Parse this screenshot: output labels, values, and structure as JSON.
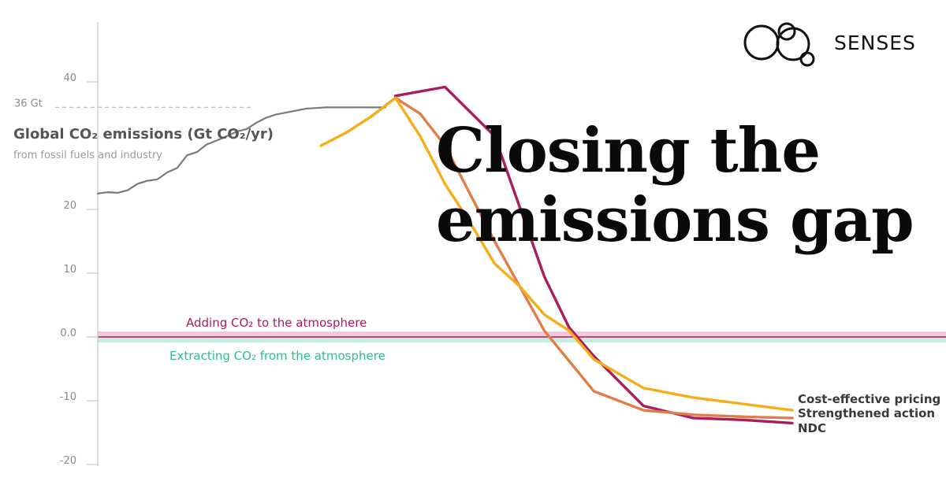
{
  "brand": {
    "name": "SENSES",
    "logo_icon": "senses-circles-logo-icon"
  },
  "headline": {
    "line1": "Closing the",
    "line2": "emissions gap"
  },
  "chart_data": {
    "type": "line",
    "ylabel": "Global CO₂ emissions (Gt CO₂/yr)",
    "subtitle": "from fossil fuels and industry",
    "ylim": [
      -20,
      50
    ],
    "xlim": [
      1960,
      2100
    ],
    "yticks": [
      {
        "value": 40,
        "label": "40"
      },
      {
        "value": 20,
        "label": "20"
      },
      {
        "value": 10,
        "label": "10"
      },
      {
        "value": 0,
        "label": "0.0"
      },
      {
        "value": -10,
        "label": "-10"
      },
      {
        "value": -20,
        "label": "-20"
      }
    ],
    "reference": {
      "value": 36,
      "label": "36 Gt"
    },
    "bands": [
      {
        "label": "Adding CO₂ to the atmosphere",
        "color": "#b0185e",
        "fill": "#f3c6d8"
      },
      {
        "label": "Extracting CO₂ from the atmosphere",
        "color": "#2bbf8e",
        "fill": "#c4eedd"
      }
    ],
    "series": [
      {
        "name": "",
        "color": "#7a7a7a",
        "x": [
          1960,
          1962,
          1964,
          1966,
          1968,
          1970,
          1972,
          1974,
          1976,
          1978,
          1980,
          1982,
          1984,
          1986,
          1988,
          1990,
          1992,
          1994,
          1996,
          1998,
          2000,
          2002,
          2004,
          2006,
          2008,
          2010,
          2012,
          2014,
          2016,
          2018
        ],
        "y": [
          22.5,
          22.7,
          22.6,
          23.0,
          24.0,
          24.5,
          24.7,
          25.8,
          26.5,
          28.5,
          29.0,
          30.2,
          30.8,
          31.5,
          32.2,
          32.6,
          33.6,
          34.4,
          34.9,
          35.2,
          35.5,
          35.8,
          35.9,
          36.0,
          36.0,
          36.0,
          36.0,
          36.0,
          36.0,
          36.0
        ]
      },
      {
        "name": "NDC",
        "color": "#a91d5f",
        "x": [
          2020,
          2030,
          2040,
          2050,
          2055,
          2060,
          2070,
          2080,
          2090,
          2100
        ],
        "y": [
          37.8,
          39.2,
          31.5,
          9.5,
          1.5,
          -3.0,
          -10.8,
          -12.7,
          -13.0,
          -13.5
        ]
      },
      {
        "name": "Strengthened action",
        "color": "#e07d4a",
        "x": [
          2015,
          2020,
          2025,
          2030,
          2040,
          2050,
          2060,
          2070,
          2080,
          2090,
          2100
        ],
        "y": [
          34.5,
          37.5,
          35.0,
          30.0,
          15.0,
          1.0,
          -8.5,
          -11.5,
          -12.2,
          -12.5,
          -12.7
        ]
      },
      {
        "name": "Cost-effective pricing",
        "color": "#f5ae1a",
        "x": [
          2005,
          2010,
          2015,
          2020,
          2025,
          2030,
          2035,
          2040,
          2045,
          2050,
          2055,
          2060,
          2070,
          2080,
          2090,
          2100
        ],
        "y": [
          30.0,
          32.0,
          34.5,
          37.5,
          31.5,
          24.0,
          18.0,
          11.5,
          8.0,
          3.5,
          1.0,
          -3.5,
          -8.0,
          -9.5,
          -10.5,
          -11.5
        ]
      }
    ],
    "legend": [
      "Cost-effective pricing",
      "Strengthened action",
      "NDC"
    ],
    "grid": false
  }
}
